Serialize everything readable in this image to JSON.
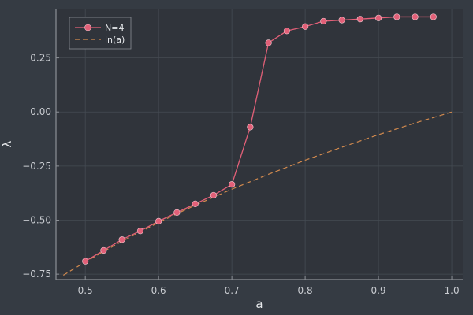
{
  "chart_data": {
    "type": "line",
    "title": "",
    "xlabel": "a",
    "ylabel": "λ",
    "xlim": [
      0.46,
      1.015
    ],
    "ylim": [
      -0.775,
      0.478
    ],
    "xticks": [
      0.5,
      0.6,
      0.7,
      0.8,
      0.9,
      1.0
    ],
    "xtick_labels": [
      "0.5",
      "0.6",
      "0.7",
      "0.8",
      "0.9",
      "1.0"
    ],
    "yticks": [
      -0.75,
      -0.5,
      -0.25,
      0.0,
      0.25
    ],
    "ytick_labels": [
      "−0.75",
      "−0.50",
      "−0.25",
      "0.00",
      "0.25"
    ],
    "grid": true,
    "legend_position": "top-left",
    "colors": {
      "background": "#353b43",
      "plot_area": "#30343b",
      "axis": "#8c9096",
      "grid": "#454b53",
      "series1": "#e26078",
      "series2": "#d28a4e"
    },
    "series": [
      {
        "name": "N=4",
        "style": "line-with-markers",
        "x": [
          0.5,
          0.525,
          0.55,
          0.575,
          0.6,
          0.625,
          0.65,
          0.675,
          0.7,
          0.725,
          0.75,
          0.775,
          0.8,
          0.825,
          0.85,
          0.875,
          0.9,
          0.925,
          0.95,
          0.975
        ],
        "y": [
          -0.69,
          -0.64,
          -0.59,
          -0.55,
          -0.505,
          -0.465,
          -0.425,
          -0.385,
          -0.335,
          -0.07,
          0.32,
          0.375,
          0.395,
          0.42,
          0.425,
          0.43,
          0.435,
          0.44,
          0.44,
          0.44
        ]
      },
      {
        "name": "ln(a)",
        "style": "dashed",
        "x": [
          0.47,
          0.5,
          0.55,
          0.6,
          0.65,
          0.7,
          0.75,
          0.8,
          0.85,
          0.9,
          0.95,
          1.0
        ],
        "y": [
          -0.755,
          -0.693,
          -0.598,
          -0.511,
          -0.431,
          -0.357,
          -0.288,
          -0.223,
          -0.163,
          -0.105,
          -0.051,
          0.0
        ]
      }
    ]
  }
}
